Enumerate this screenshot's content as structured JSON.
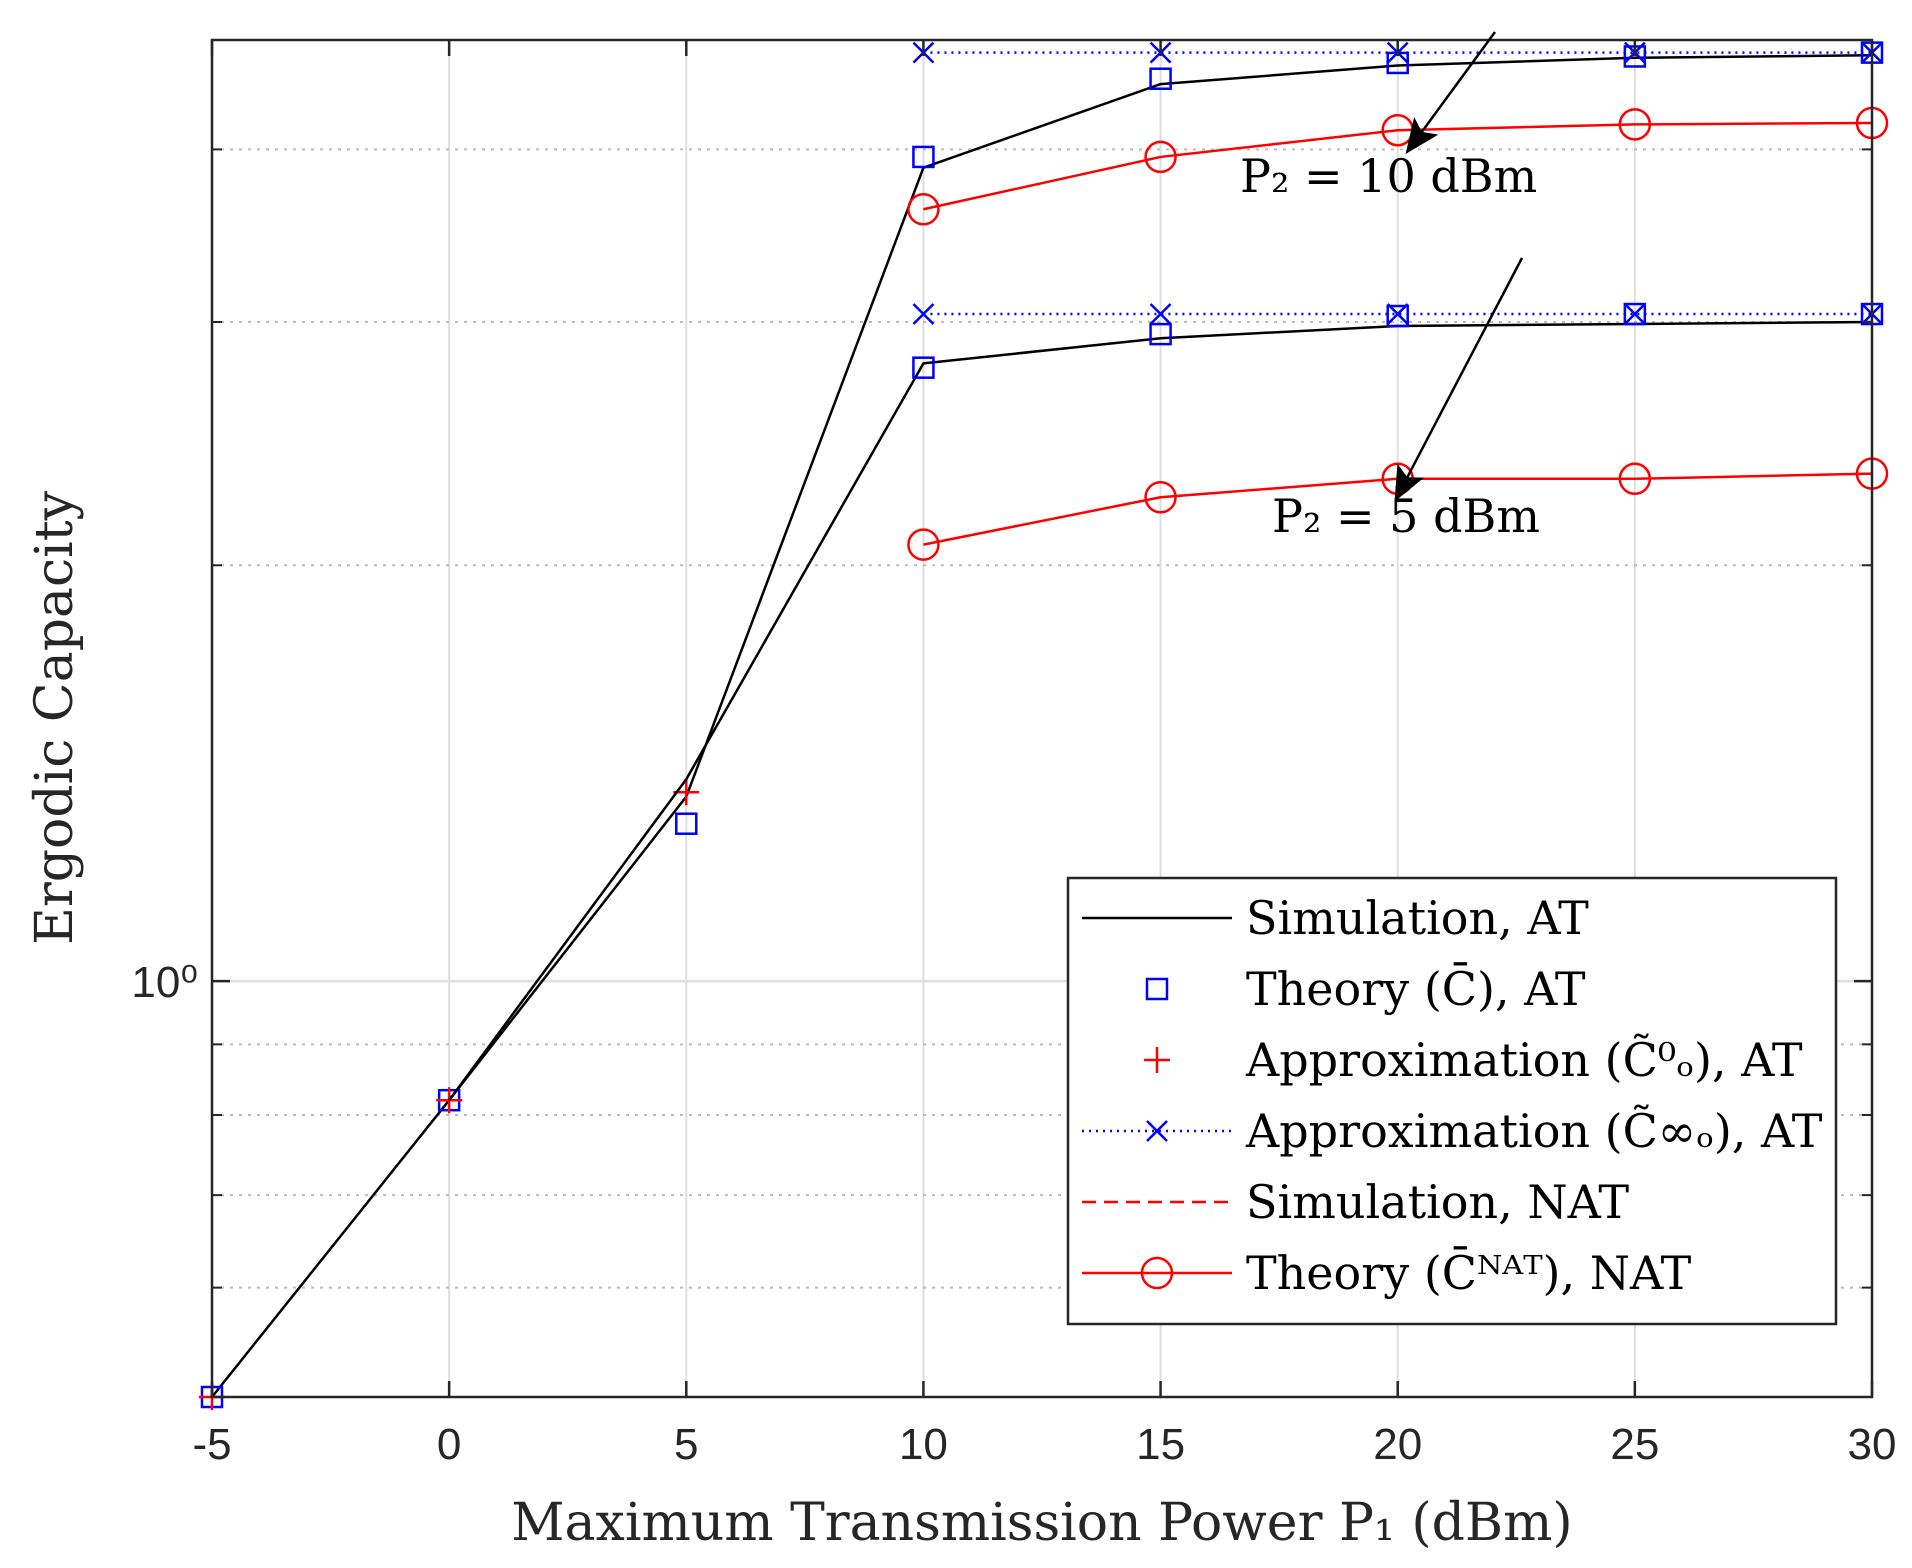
{
  "chart_data": {
    "type": "line",
    "title": "",
    "xlabel": "Maximum Transmission Power P₁ (dBm)",
    "ylabel": "Ergodic Capacity",
    "x_ticks": [
      "-5",
      "0",
      "5",
      "10",
      "15",
      "20",
      "25",
      "30"
    ],
    "y_scale": "log",
    "y_ticks": [
      {
        "value": 1,
        "label": "10⁰"
      }
    ],
    "xlim": [
      -5,
      30
    ],
    "ylim": [
      0.5,
      4.8
    ],
    "grid": true,
    "legend_position": "bottom-right",
    "annotations": [
      "P₂ = 10 dBm",
      "P₂ = 5 dBm"
    ],
    "colors": {
      "black": "#000000",
      "blue": "#0000ff",
      "red": "#ff0000",
      "grid": "#dedede",
      "axis": "#262626"
    },
    "series": [
      {
        "name": "Simulation, AT",
        "group": "P₂ = 10 dBm",
        "style": "solid-black",
        "x": [
          -5,
          0,
          5,
          10,
          15,
          20,
          25,
          30
        ],
        "y": [
          0.5,
          0.82,
          1.36,
          3.88,
          4.46,
          4.6,
          4.66,
          4.68
        ]
      },
      {
        "name": "Theory (C̄), AT",
        "group": "P₂ = 10 dBm",
        "style": "blue-square",
        "x": [
          -5,
          0,
          10,
          15,
          20,
          25,
          30
        ],
        "y": [
          0.5,
          0.82,
          3.95,
          4.5,
          4.62,
          4.67,
          4.7
        ]
      },
      {
        "name": "Approximation (C̃⁰ₒ), AT",
        "group": "P₂ = 10 dBm",
        "style": "red-plus",
        "x": [
          -5,
          0,
          5
        ],
        "y": [
          0.5,
          0.82,
          1.37
        ]
      },
      {
        "name": "Approximation (C̃∞ₒ), AT",
        "group": "P₂ = 10 dBm",
        "style": "blue-x-dotted",
        "x": [
          10,
          15,
          20,
          25,
          30
        ],
        "y": [
          4.7,
          4.7,
          4.7,
          4.7,
          4.7
        ]
      },
      {
        "name": "Theory (C̄ᴺᴬᵀ), NAT",
        "group": "P₂ = 10 dBm",
        "style": "red-circle",
        "x": [
          10,
          15,
          20,
          25,
          30
        ],
        "y": [
          3.62,
          3.95,
          4.13,
          4.17,
          4.18
        ]
      },
      {
        "name": "Simulation, AT",
        "group": "P₂ = 5 dBm",
        "style": "solid-black",
        "x": [
          0,
          5,
          10,
          15,
          20,
          25,
          30
        ],
        "y": [
          0.82,
          1.4,
          2.8,
          2.92,
          2.98,
          2.99,
          3.0
        ]
      },
      {
        "name": "Theory (C̄), AT",
        "group": "P₂ = 5 dBm",
        "style": "blue-square",
        "x": [
          5,
          10,
          15,
          20,
          25,
          30
        ],
        "y": [
          1.3,
          2.78,
          2.94,
          3.03,
          3.04,
          3.04
        ]
      },
      {
        "name": "Approximation (C̃∞ₒ), AT",
        "group": "P₂ = 5 dBm",
        "style": "blue-x-dotted",
        "x": [
          10,
          15,
          20,
          25,
          30
        ],
        "y": [
          3.04,
          3.04,
          3.04,
          3.04,
          3.04
        ]
      },
      {
        "name": "Theory (C̄ᴺᴬᵀ), NAT",
        "group": "P₂ = 5 dBm",
        "style": "red-circle",
        "x": [
          10,
          15,
          20,
          25,
          30
        ],
        "y": [
          2.07,
          2.24,
          2.31,
          2.31,
          2.33
        ]
      }
    ],
    "legend": {
      "entries": [
        {
          "label": "Simulation, AT",
          "style": "solid-black"
        },
        {
          "label": "Theory (C̄), AT",
          "style": "blue-square"
        },
        {
          "label": "Approximation (C̃⁰ₒ), AT",
          "style": "red-plus"
        },
        {
          "label": "Approximation (C̃∞ₒ), AT",
          "style": "blue-x-dotted"
        },
        {
          "label": "Simulation, NAT",
          "style": "red-dashed"
        },
        {
          "label": "Theory (C̄ᴺᴬᵀ), NAT",
          "style": "red-circle"
        }
      ]
    }
  }
}
